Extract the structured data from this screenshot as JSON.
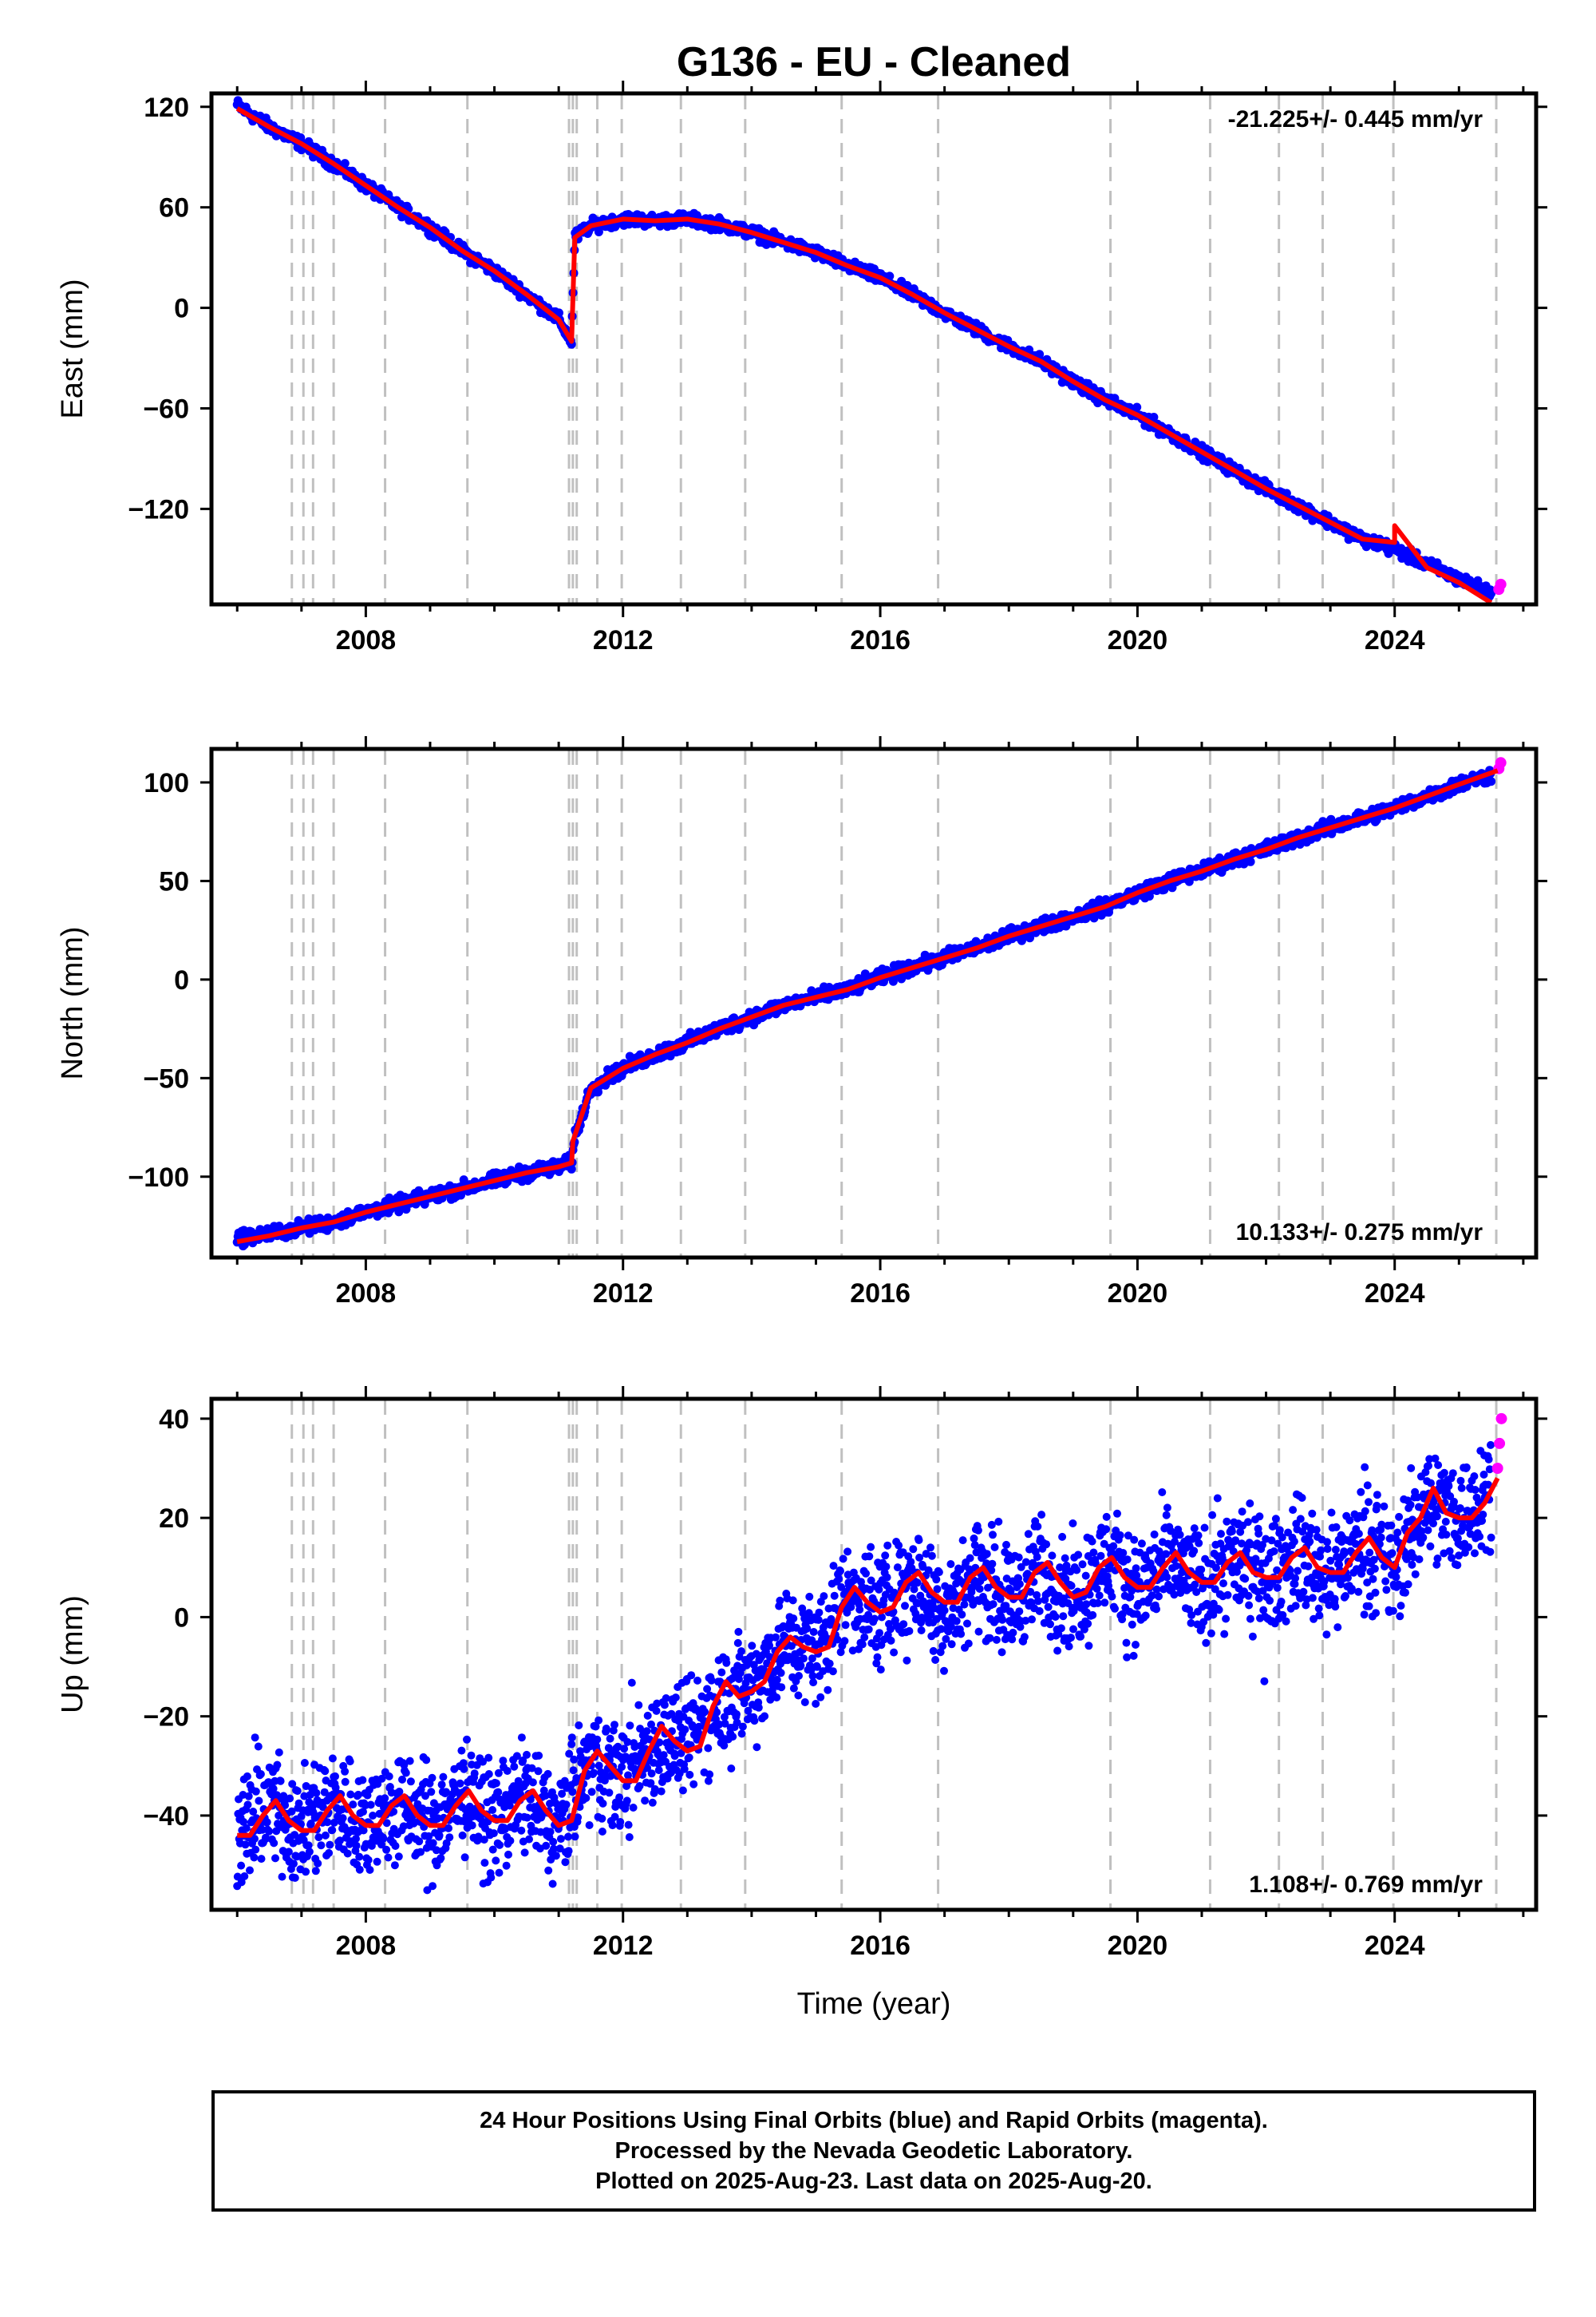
{
  "chart_data": {
    "title": "G136  - EU - Cleaned",
    "xlabel": "Time (year)",
    "xlim": [
      2005.6,
      2026.2
    ],
    "x_ticks": [
      2008,
      2012,
      2016,
      2020,
      2024
    ],
    "event_lines": [
      2006.85,
      2007.03,
      2007.18,
      2007.5,
      2008.3,
      2009.58,
      2011.16,
      2011.22,
      2011.28,
      2011.6,
      2011.98,
      2012.9,
      2013.9,
      2015.4,
      2016.9,
      2019.58,
      2021.13,
      2022.2,
      2022.88,
      2023.98,
      2025.58
    ],
    "colors": {
      "final_orbits": "#0000ff",
      "rapid_orbits": "#ff00ff",
      "model": "#ff0000",
      "event_line": "#c0c0c0"
    },
    "panels": [
      {
        "name": "east",
        "type": "scatter",
        "ylabel": "East (mm)",
        "ylim": [
          -177,
          128
        ],
        "y_ticks": [
          120,
          60,
          0,
          -60,
          -120
        ],
        "y_tick_labels": [
          "120",
          "60",
          "0",
          "−60",
          "−120"
        ],
        "rate_text": "-21.225+/- 0.445 mm/yr",
        "rate_position": "top-right",
        "series": [
          {
            "name": "Final Orbits",
            "x": [
              2006.0,
              2006.5,
              2007.0,
              2007.5,
              2008.0,
              2008.5,
              2009.0,
              2009.5,
              2010.0,
              2010.5,
              2011.0,
              2011.2,
              2011.25,
              2011.5,
              2012.0,
              2012.5,
              2013.0,
              2013.5,
              2014.0,
              2014.5,
              2015.0,
              2015.5,
              2016.0,
              2016.5,
              2017.0,
              2017.5,
              2018.0,
              2018.5,
              2019.0,
              2019.5,
              2020.0,
              2020.5,
              2021.0,
              2021.5,
              2022.0,
              2022.5,
              2023.0,
              2023.5,
              2024.0,
              2024.5,
              2025.0,
              2025.5
            ],
            "y": [
              121,
              108,
              98,
              86,
              73,
              60,
              48,
              34,
              22,
              8,
              -7,
              -20,
              42,
              49,
              53,
              52,
              53,
              50,
              45,
              39,
              33,
              25,
              18,
              8,
              -3,
              -13,
              -23,
              -32,
              -44,
              -55,
              -64,
              -75,
              -86,
              -97,
              -108,
              -118,
              -128,
              -138,
              -144,
              -153,
              -162,
              -170
            ]
          },
          {
            "name": "Rapid Orbits",
            "x": [
              2025.62,
              2025.65
            ],
            "y": [
              -168,
              -165
            ]
          }
        ],
        "model": {
          "x": [
            2006.0,
            2006.5,
            2007.0,
            2007.5,
            2008.0,
            2008.5,
            2009.0,
            2009.5,
            2010.0,
            2010.5,
            2011.0,
            2011.2,
            2011.25,
            2011.5,
            2012.0,
            2012.5,
            2013.0,
            2013.5,
            2014.0,
            2014.5,
            2015.0,
            2015.5,
            2016.0,
            2016.5,
            2017.0,
            2017.5,
            2018.0,
            2018.5,
            2019.0,
            2019.5,
            2020.0,
            2020.5,
            2021.0,
            2021.5,
            2022.0,
            2022.5,
            2023.0,
            2023.5,
            2024.0,
            2024.0,
            2024.5,
            2025.0,
            2025.5
          ],
          "y": [
            119,
            108,
            98,
            86,
            73,
            60,
            48,
            34,
            22,
            8,
            -7,
            -20,
            42,
            49,
            53,
            52,
            53,
            50,
            45,
            39,
            33,
            25,
            18,
            8,
            -3,
            -13,
            -23,
            -32,
            -44,
            -55,
            -64,
            -75,
            -86,
            -97,
            -108,
            -118,
            -128,
            -138,
            -140,
            -130,
            -155,
            -164,
            -176
          ]
        }
      },
      {
        "name": "north",
        "type": "scatter",
        "ylabel": "North (mm)",
        "ylim": [
          -141,
          117
        ],
        "y_ticks": [
          100,
          50,
          0,
          -50,
          -100
        ],
        "y_tick_labels": [
          "100",
          "50",
          "0",
          "−50",
          "−100"
        ],
        "rate_text": "10.133+/- 0.275 mm/yr",
        "rate_position": "bottom-right",
        "series": [
          {
            "name": "Final Orbits",
            "x": [
              2006.0,
              2006.5,
              2007.0,
              2007.5,
              2008.0,
              2008.5,
              2009.0,
              2009.5,
              2010.0,
              2010.5,
              2011.0,
              2011.2,
              2011.25,
              2011.5,
              2012.0,
              2012.5,
              2013.0,
              2013.5,
              2014.0,
              2014.5,
              2015.0,
              2015.5,
              2016.0,
              2016.5,
              2017.0,
              2017.5,
              2018.0,
              2018.5,
              2019.0,
              2019.5,
              2020.0,
              2020.5,
              2021.0,
              2021.5,
              2022.0,
              2022.5,
              2023.0,
              2023.5,
              2024.0,
              2024.5,
              2025.0,
              2025.5
            ],
            "y": [
              -131,
              -129,
              -126,
              -123,
              -118,
              -114,
              -110,
              -106,
              -102,
              -98,
              -95,
              -93,
              -80,
              -55,
              -45,
              -38,
              -32,
              -25,
              -19,
              -13,
              -9,
              -5,
              1,
              6,
              11,
              16,
              22,
              27,
              32,
              37,
              44,
              50,
              55,
              61,
              66,
              72,
              77,
              82,
              87,
              93,
              99,
              104
            ]
          },
          {
            "name": "Rapid Orbits",
            "x": [
              2025.62,
              2025.65
            ],
            "y": [
              107,
              110
            ]
          }
        ],
        "model": {
          "x": [
            2006.0,
            2006.5,
            2007.0,
            2007.5,
            2008.0,
            2008.5,
            2009.0,
            2009.5,
            2010.0,
            2010.5,
            2011.0,
            2011.2,
            2011.22,
            2011.5,
            2012.0,
            2012.5,
            2013.0,
            2013.5,
            2014.0,
            2014.5,
            2015.0,
            2015.5,
            2016.0,
            2016.5,
            2017.0,
            2017.5,
            2018.0,
            2018.5,
            2019.0,
            2019.5,
            2020.0,
            2020.5,
            2021.0,
            2021.5,
            2022.0,
            2022.5,
            2023.0,
            2023.5,
            2024.0,
            2024.5,
            2025.0,
            2025.6
          ],
          "y": [
            -133,
            -130,
            -126,
            -123,
            -118,
            -114,
            -110,
            -106,
            -102,
            -98,
            -95,
            -93,
            -82,
            -55,
            -45,
            -38,
            -32,
            -25,
            -19,
            -13,
            -9,
            -5,
            1,
            6,
            11,
            16,
            22,
            27,
            32,
            37,
            44,
            50,
            55,
            61,
            66,
            72,
            77,
            82,
            87,
            93,
            99,
            106
          ]
        }
      },
      {
        "name": "up",
        "type": "scatter",
        "ylabel": "Up (mm)",
        "ylim": [
          -59,
          44
        ],
        "y_ticks": [
          40,
          20,
          0,
          -20,
          -40
        ],
        "y_tick_labels": [
          "40",
          "20",
          "0",
          "−20",
          "−40"
        ],
        "rate_text": "1.108+/- 0.769 mm/yr",
        "rate_position": "bottom-right",
        "series": [
          {
            "name": "Final Orbits",
            "x": [
              2006.0,
              2006.5,
              2007.0,
              2007.5,
              2008.0,
              2008.5,
              2009.0,
              2009.5,
              2010.0,
              2010.5,
              2011.0,
              2011.5,
              2012.0,
              2012.5,
              2013.0,
              2013.5,
              2014.0,
              2014.5,
              2015.0,
              2015.5,
              2016.0,
              2016.5,
              2017.0,
              2017.5,
              2018.0,
              2018.5,
              2019.0,
              2019.5,
              2020.0,
              2020.5,
              2021.0,
              2021.5,
              2022.0,
              2022.5,
              2023.0,
              2023.5,
              2024.0,
              2024.5,
              2025.0,
              2025.5
            ],
            "y": [
              -44,
              -38,
              -43,
              -37,
              -42,
              -38,
              -42,
              -36,
              -41,
              -36,
              -43,
              -29,
              -33,
              -25,
              -25,
              -16,
              -14,
              -5,
              -7,
              5,
              1,
              8,
              2,
              9,
              3,
              9,
              4,
              11,
              5,
              11,
              6,
              12,
              7,
              13,
              8,
              15,
              9,
              24,
              20,
              27
            ]
          },
          {
            "name": "Rapid Orbits",
            "x": [
              2025.6,
              2025.63,
              2025.66
            ],
            "y": [
              30,
              35,
              40
            ]
          }
        ],
        "model": {
          "x": [
            2006.0,
            2006.2,
            2006.4,
            2006.6,
            2006.8,
            2007.0,
            2007.2,
            2007.4,
            2007.6,
            2007.8,
            2008.0,
            2008.2,
            2008.4,
            2008.6,
            2008.8,
            2009.0,
            2009.2,
            2009.4,
            2009.6,
            2009.8,
            2010.0,
            2010.2,
            2010.4,
            2010.6,
            2010.8,
            2011.0,
            2011.2,
            2011.4,
            2011.6,
            2011.8,
            2012.0,
            2012.2,
            2012.4,
            2012.6,
            2012.8,
            2013.0,
            2013.2,
            2013.4,
            2013.6,
            2013.8,
            2014.0,
            2014.2,
            2014.4,
            2014.6,
            2014.8,
            2015.0,
            2015.2,
            2015.4,
            2015.6,
            2015.8,
            2016.0,
            2016.2,
            2016.4,
            2016.6,
            2016.8,
            2017.0,
            2017.2,
            2017.4,
            2017.6,
            2017.8,
            2018.0,
            2018.2,
            2018.4,
            2018.6,
            2018.8,
            2019.0,
            2019.2,
            2019.4,
            2019.6,
            2019.8,
            2020.0,
            2020.2,
            2020.4,
            2020.6,
            2020.8,
            2021.0,
            2021.2,
            2021.4,
            2021.6,
            2021.8,
            2022.0,
            2022.2,
            2022.4,
            2022.6,
            2022.8,
            2023.0,
            2023.2,
            2023.4,
            2023.6,
            2023.8,
            2024.0,
            2024.2,
            2024.4,
            2024.6,
            2024.8,
            2025.0,
            2025.2,
            2025.4,
            2025.6
          ],
          "y": [
            -44,
            -44,
            -40,
            -37,
            -41,
            -43,
            -43,
            -39,
            -36,
            -40,
            -42,
            -42,
            -38,
            -36,
            -40,
            -42,
            -42,
            -38,
            -35,
            -39,
            -41,
            -41,
            -37,
            -35,
            -39,
            -42,
            -41,
            -31,
            -27,
            -30,
            -33,
            -33,
            -27,
            -22,
            -25,
            -27,
            -26,
            -18,
            -13,
            -16,
            -15,
            -13,
            -7,
            -4,
            -6,
            -7,
            -6,
            2,
            6,
            3,
            1,
            2,
            7,
            9,
            5,
            3,
            3,
            8,
            10,
            6,
            4,
            4,
            9,
            11,
            7,
            4,
            5,
            10,
            12,
            8,
            6,
            6,
            10,
            13,
            9,
            7,
            7,
            11,
            13,
            9,
            8,
            8,
            12,
            14,
            10,
            9,
            9,
            13,
            16,
            12,
            10,
            17,
            20,
            26,
            21,
            20,
            20,
            23,
            28
          ]
        }
      }
    ]
  },
  "footer": {
    "line1": "24 Hour Positions Using Final Orbits (blue) and Rapid Orbits (magenta).",
    "line2": "Processed by the Nevada Geodetic Laboratory.",
    "line3": "Plotted on 2025-Aug-23. Last data on 2025-Aug-20."
  }
}
